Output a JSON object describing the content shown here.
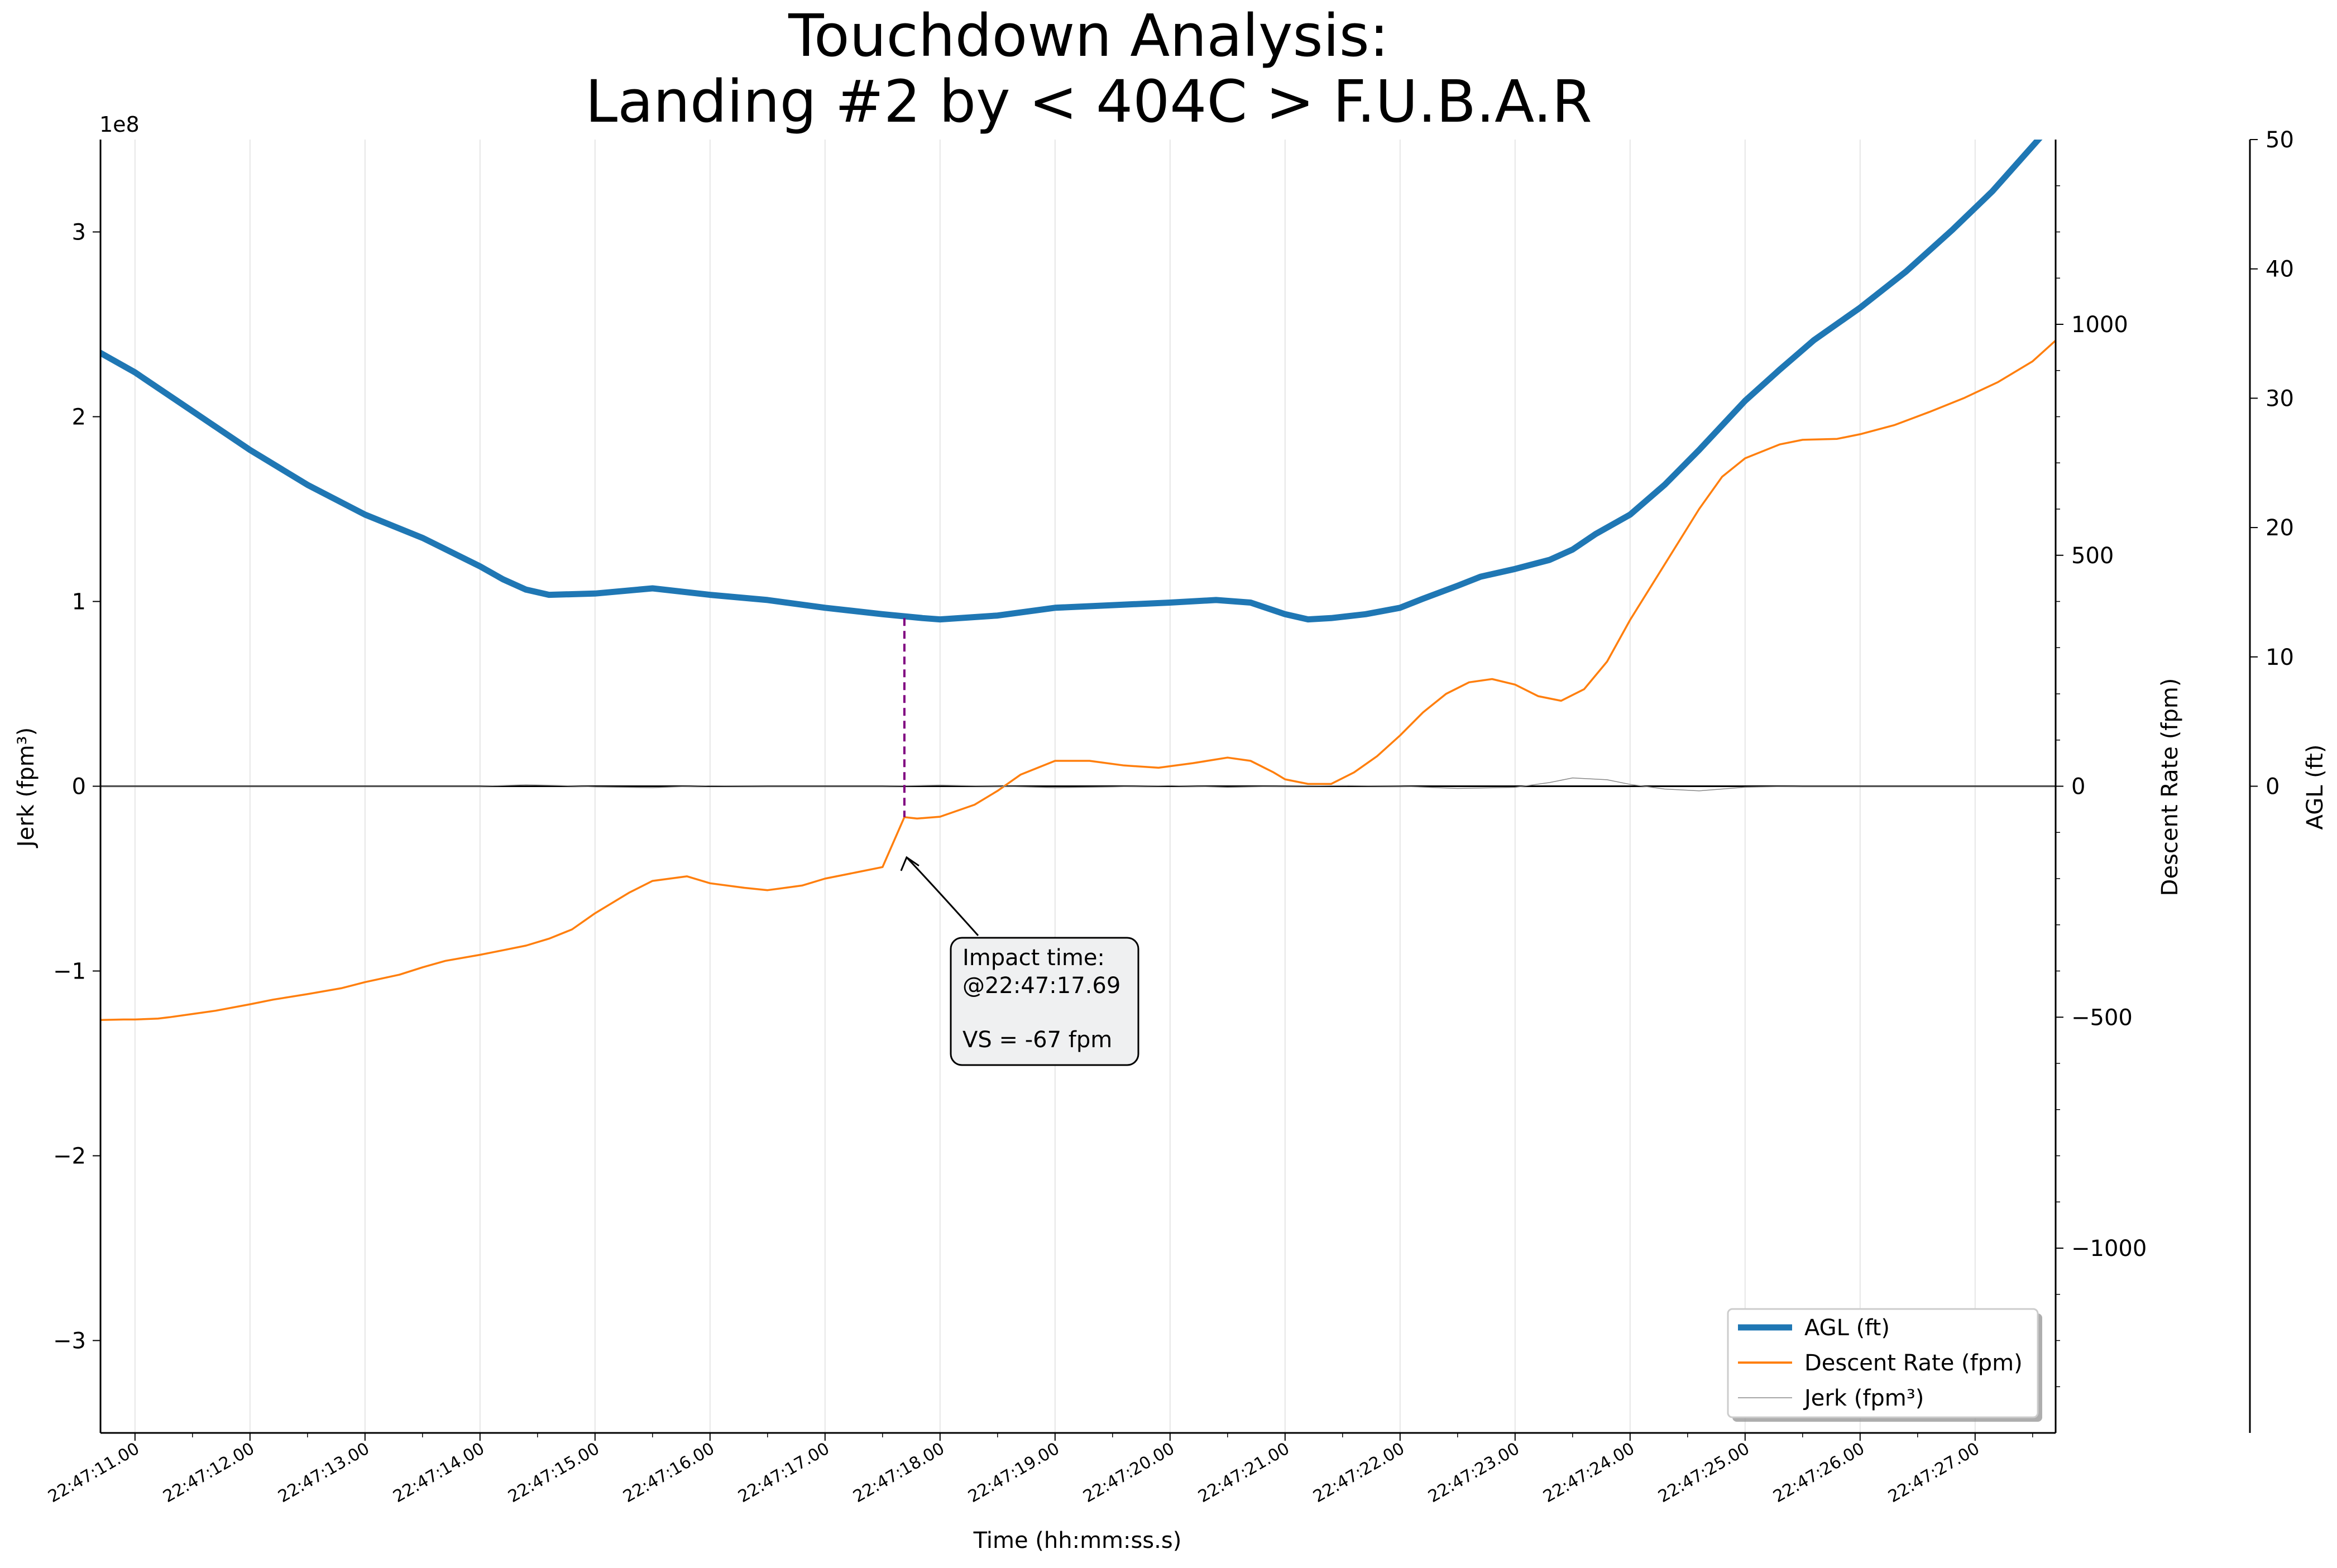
{
  "chart_data": {
    "type": "line",
    "title_line1": "Touchdown Analysis:",
    "title_line2": "Landing #2 by < 404C > F.U.B.A.R",
    "xlabel": "Time (hh:mm:ss.s)",
    "ylabel_left": "Jerk (fpm³)",
    "ylabel_right1": "Descent Rate (fpm)",
    "ylabel_right2": "AGL (ft)",
    "left_offset_text": "1e8",
    "xlim": [
      10.7,
      27.7
    ],
    "x_ticks": [
      {
        "v": 11,
        "label": "22:47:11.00"
      },
      {
        "v": 12,
        "label": "22:47:12.00"
      },
      {
        "v": 13,
        "label": "22:47:13.00"
      },
      {
        "v": 14,
        "label": "22:47:14.00"
      },
      {
        "v": 15,
        "label": "22:47:15.00"
      },
      {
        "v": 16,
        "label": "22:47:16.00"
      },
      {
        "v": 17,
        "label": "22:47:17.00"
      },
      {
        "v": 18,
        "label": "22:47:18.00"
      },
      {
        "v": 19,
        "label": "22:47:19.00"
      },
      {
        "v": 20,
        "label": "22:47:20.00"
      },
      {
        "v": 21,
        "label": "22:47:21.00"
      },
      {
        "v": 22,
        "label": "22:47:22.00"
      },
      {
        "v": 23,
        "label": "22:47:23.00"
      },
      {
        "v": 24,
        "label": "22:47:24.00"
      },
      {
        "v": 25,
        "label": "22:47:25.00"
      },
      {
        "v": 26,
        "label": "22:47:26.00"
      },
      {
        "v": 27,
        "label": "22:47:27.00"
      }
    ],
    "jerk_axis": {
      "ylim": [
        -3.5,
        3.5
      ],
      "ticks": [
        {
          "v": 3,
          "label": "3"
        },
        {
          "v": 2,
          "label": "2"
        },
        {
          "v": 1,
          "label": "1"
        },
        {
          "v": 0,
          "label": "0"
        },
        {
          "v": -1,
          "label": "−1"
        },
        {
          "v": -2,
          "label": "−2"
        },
        {
          "v": -3,
          "label": "−3"
        }
      ]
    },
    "descent_axis": {
      "ylim": [
        -1400,
        1400
      ],
      "ticks": [
        {
          "v": 1000,
          "label": "1000"
        },
        {
          "v": 500,
          "label": "500"
        },
        {
          "v": 0,
          "label": "0"
        },
        {
          "v": -500,
          "label": "−500"
        },
        {
          "v": -1000,
          "label": "−1000"
        }
      ]
    },
    "agl_axis": {
      "ylim": [
        -50,
        50
      ],
      "ticks": [
        {
          "v": 50,
          "label": "50"
        },
        {
          "v": 40,
          "label": "40"
        },
        {
          "v": 30,
          "label": "30"
        },
        {
          "v": 20,
          "label": "20"
        },
        {
          "v": 10,
          "label": "10"
        },
        {
          "v": 0,
          "label": "0"
        }
      ]
    },
    "series": [
      {
        "name": "AGL (ft)",
        "color": "#1f77b4",
        "axis": "agl",
        "points": [
          [
            10.7,
            33.5
          ],
          [
            11.0,
            32.0
          ],
          [
            11.5,
            29.0
          ],
          [
            12.0,
            26.0
          ],
          [
            12.5,
            23.3
          ],
          [
            13.0,
            21.0
          ],
          [
            13.5,
            19.2
          ],
          [
            14.0,
            17.0
          ],
          [
            14.2,
            16.0
          ],
          [
            14.4,
            15.2
          ],
          [
            14.6,
            14.8
          ],
          [
            15.0,
            14.9
          ],
          [
            15.5,
            15.3
          ],
          [
            16.0,
            14.8
          ],
          [
            16.5,
            14.4
          ],
          [
            17.0,
            13.8
          ],
          [
            17.5,
            13.3
          ],
          [
            17.85,
            13.0
          ],
          [
            18.0,
            12.9
          ],
          [
            18.5,
            13.2
          ],
          [
            19.0,
            13.8
          ],
          [
            19.5,
            14.0
          ],
          [
            20.0,
            14.2
          ],
          [
            20.4,
            14.4
          ],
          [
            20.7,
            14.2
          ],
          [
            21.0,
            13.3
          ],
          [
            21.2,
            12.9
          ],
          [
            21.4,
            13.0
          ],
          [
            21.7,
            13.3
          ],
          [
            22.0,
            13.8
          ],
          [
            22.2,
            14.5
          ],
          [
            22.5,
            15.5
          ],
          [
            22.7,
            16.2
          ],
          [
            23.0,
            16.8
          ],
          [
            23.3,
            17.5
          ],
          [
            23.5,
            18.3
          ],
          [
            23.7,
            19.5
          ],
          [
            24.0,
            21.0
          ],
          [
            24.3,
            23.3
          ],
          [
            24.6,
            26.0
          ],
          [
            25.0,
            29.8
          ],
          [
            25.3,
            32.2
          ],
          [
            25.6,
            34.5
          ],
          [
            26.0,
            37.0
          ],
          [
            26.4,
            39.8
          ],
          [
            26.8,
            43.0
          ],
          [
            27.15,
            46.0
          ],
          [
            27.45,
            49.0
          ],
          [
            27.6,
            50.5
          ],
          [
            27.7,
            51.5
          ]
        ]
      },
      {
        "name": "Descent Rate (fpm)",
        "color": "#ff7f0e",
        "axis": "descent",
        "points": [
          [
            10.7,
            -506
          ],
          [
            10.9,
            -505
          ],
          [
            11.0,
            -505
          ],
          [
            11.2,
            -503
          ],
          [
            11.3,
            -500
          ],
          [
            11.5,
            -493
          ],
          [
            11.7,
            -486
          ],
          [
            12.0,
            -472
          ],
          [
            12.2,
            -462
          ],
          [
            12.5,
            -450
          ],
          [
            12.8,
            -437
          ],
          [
            13.0,
            -424
          ],
          [
            13.3,
            -408
          ],
          [
            13.5,
            -392
          ],
          [
            13.7,
            -378
          ],
          [
            14.0,
            -365
          ],
          [
            14.2,
            -355
          ],
          [
            14.4,
            -345
          ],
          [
            14.6,
            -330
          ],
          [
            14.8,
            -310
          ],
          [
            15.0,
            -275
          ],
          [
            15.3,
            -230
          ],
          [
            15.5,
            -205
          ],
          [
            15.8,
            -195
          ],
          [
            16.0,
            -210
          ],
          [
            16.3,
            -220
          ],
          [
            16.5,
            -225
          ],
          [
            16.8,
            -215
          ],
          [
            17.0,
            -200
          ],
          [
            17.3,
            -185
          ],
          [
            17.5,
            -175
          ],
          [
            17.69,
            -67
          ],
          [
            17.8,
            -70
          ],
          [
            18.0,
            -66
          ],
          [
            18.3,
            -40
          ],
          [
            18.5,
            -10
          ],
          [
            18.7,
            25
          ],
          [
            19.0,
            55
          ],
          [
            19.3,
            55
          ],
          [
            19.6,
            45
          ],
          [
            19.9,
            40
          ],
          [
            20.2,
            50
          ],
          [
            20.5,
            62
          ],
          [
            20.7,
            55
          ],
          [
            20.9,
            30
          ],
          [
            21.0,
            15
          ],
          [
            21.2,
            5
          ],
          [
            21.4,
            5
          ],
          [
            21.6,
            30
          ],
          [
            21.8,
            65
          ],
          [
            22.0,
            110
          ],
          [
            22.2,
            160
          ],
          [
            22.4,
            200
          ],
          [
            22.6,
            225
          ],
          [
            22.8,
            232
          ],
          [
            23.0,
            220
          ],
          [
            23.2,
            195
          ],
          [
            23.4,
            185
          ],
          [
            23.6,
            210
          ],
          [
            23.8,
            270
          ],
          [
            24.0,
            360
          ],
          [
            24.3,
            480
          ],
          [
            24.6,
            600
          ],
          [
            24.8,
            670
          ],
          [
            25.0,
            710
          ],
          [
            25.3,
            740
          ],
          [
            25.5,
            750
          ],
          [
            25.8,
            752
          ],
          [
            26.0,
            762
          ],
          [
            26.3,
            782
          ],
          [
            26.6,
            810
          ],
          [
            26.9,
            840
          ],
          [
            27.2,
            875
          ],
          [
            27.5,
            920
          ],
          [
            27.7,
            965
          ]
        ]
      },
      {
        "name": "Jerk (fpm³)",
        "color": "#888888",
        "axis": "jerk",
        "points": [
          [
            10.7,
            0.0
          ],
          [
            11.2,
            0.0
          ],
          [
            11.5,
            0.0
          ],
          [
            12.5,
            0.0
          ],
          [
            13.0,
            0.0
          ],
          [
            14.0,
            0.0
          ],
          [
            14.4,
            0.008
          ],
          [
            14.7,
            0.004
          ],
          [
            15.0,
            -0.004
          ],
          [
            15.5,
            -0.008
          ],
          [
            16.0,
            0.003
          ],
          [
            16.5,
            0.0
          ],
          [
            17.5,
            0.0
          ],
          [
            18.0,
            0.006
          ],
          [
            18.5,
            0.0
          ],
          [
            19.0,
            -0.008
          ],
          [
            19.5,
            -0.004
          ],
          [
            20.0,
            0.004
          ],
          [
            20.5,
            -0.006
          ],
          [
            21.0,
            0.0
          ],
          [
            21.5,
            0.004
          ],
          [
            22.0,
            0.0
          ],
          [
            22.5,
            -0.012
          ],
          [
            23.0,
            -0.006
          ],
          [
            23.3,
            0.02
          ],
          [
            23.5,
            0.045
          ],
          [
            23.8,
            0.035
          ],
          [
            24.0,
            0.01
          ],
          [
            24.3,
            -0.015
          ],
          [
            24.6,
            -0.025
          ],
          [
            25.0,
            -0.005
          ],
          [
            25.5,
            0.0
          ],
          [
            26.0,
            0.0
          ],
          [
            27.0,
            0.0
          ],
          [
            27.7,
            0.0
          ]
        ]
      }
    ],
    "impact": {
      "x": 17.69,
      "agl": 13.0,
      "descent": -67,
      "text_lines": [
        "Impact time:",
        "@22:47:17.69",
        "",
        "VS = -67 fpm"
      ]
    },
    "legend": {
      "placement": "bottom-right",
      "items": [
        "AGL (ft)",
        "Descent Rate (fpm)",
        "Jerk (fpm³)"
      ]
    },
    "grid": "vertical-only"
  }
}
